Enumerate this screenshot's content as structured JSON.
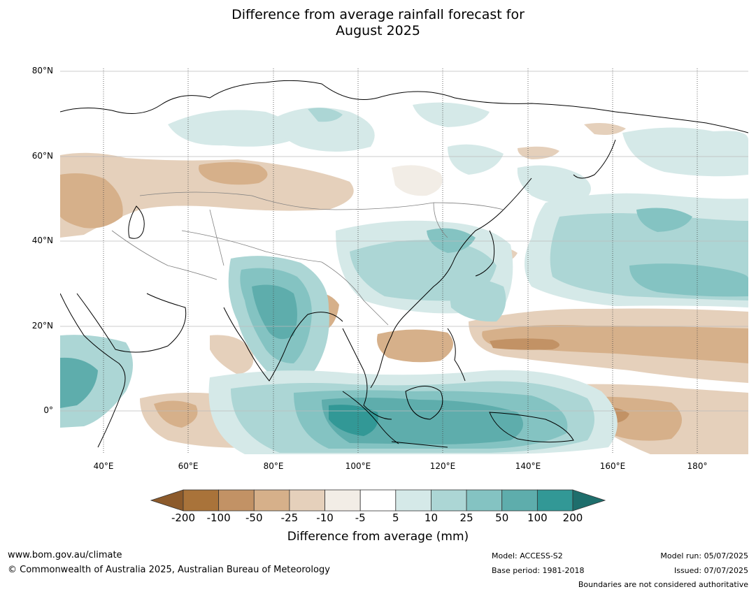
{
  "title_line1": "Difference from average rainfall forecast for",
  "title_line2": "August 2025",
  "map": {
    "lat_labels": [
      "80°N",
      "60°N",
      "40°N",
      "20°N",
      "0°"
    ],
    "lon_labels": [
      "40°E",
      "60°E",
      "80°E",
      "100°E",
      "120°E",
      "140°E",
      "160°E",
      "180°"
    ],
    "colors": {
      "dry_extreme": "#8c5a2b",
      "dry_strong": "#a9733a",
      "dry_mid": "#c29265",
      "dry_moderate": "#d6b08a",
      "dry_light": "#e5d0bb",
      "dry_faint": "#f2ede6",
      "neutral": "#ffffff",
      "wet_faint": "#d5e9e8",
      "wet_light": "#acd6d5",
      "wet_moderate": "#84c3c2",
      "wet_mid": "#5eadac",
      "wet_strong": "#329896",
      "wet_extreme": "#1e6e6c"
    }
  },
  "colorbar": {
    "ticks": [
      "-200",
      "-100",
      "-50",
      "-25",
      "-10",
      "-5",
      "5",
      "10",
      "25",
      "50",
      "100",
      "200"
    ],
    "colors": [
      "#a9733a",
      "#c29265",
      "#d6b08a",
      "#e5d0bb",
      "#f2ede6",
      "#ffffff",
      "#d5e9e8",
      "#acd6d5",
      "#84c3c2",
      "#5eadac",
      "#329896"
    ],
    "low_extend_color": "#8c5a2b",
    "high_extend_color": "#1e6e6c",
    "label": "Difference from average (mm)"
  },
  "footer": {
    "site": "www.bom.gov.au/climate",
    "copyright": "© Commonwealth of Australia 2025, Australian Bureau of Meteorology",
    "model": "Model: ACCESS-S2",
    "base_period": "Base period: 1981-2018",
    "model_run": "Model run: 05/07/2025",
    "issued": "Issued: 07/07/2025",
    "boundaries": "Boundaries are not considered authoritative"
  }
}
